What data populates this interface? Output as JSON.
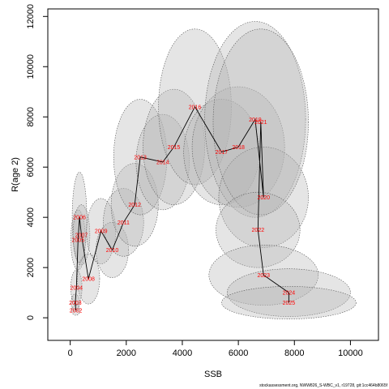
{
  "chart_data": {
    "type": "scatter",
    "xlabel": "SSB",
    "ylabel": "R(age 2)",
    "xlim": [
      -800,
      11000
    ],
    "ylim": [
      -900,
      12300
    ],
    "x_ticks": [
      0,
      2000,
      4000,
      6000,
      8000,
      10000
    ],
    "y_ticks": [
      0,
      2000,
      4000,
      6000,
      8000,
      10000,
      12000
    ],
    "grid": false,
    "colors": {
      "path": "#000000",
      "labels": "#ff0000",
      "ellipse_fill": "#b4b4b4",
      "ellipse_stroke": "#555555"
    },
    "points": [
      {
        "year": "2002",
        "x": 200,
        "y": 300
      },
      {
        "year": "2003",
        "x": 180,
        "y": 600
      },
      {
        "year": "2004",
        "x": 220,
        "y": 1200
      },
      {
        "year": "2005",
        "x": 280,
        "y": 3100
      },
      {
        "year": "2006",
        "x": 330,
        "y": 4000
      },
      {
        "year": "2007",
        "x": 400,
        "y": 3300
      },
      {
        "year": "2008",
        "x": 650,
        "y": 1550
      },
      {
        "year": "2009",
        "x": 1100,
        "y": 3450
      },
      {
        "year": "2010",
        "x": 1500,
        "y": 2700
      },
      {
        "year": "2011",
        "x": 1900,
        "y": 3800
      },
      {
        "year": "2012",
        "x": 2300,
        "y": 4500
      },
      {
        "year": "2013",
        "x": 2500,
        "y": 6400
      },
      {
        "year": "2014",
        "x": 3300,
        "y": 6200
      },
      {
        "year": "2015",
        "x": 3700,
        "y": 6800
      },
      {
        "year": "2016",
        "x": 4450,
        "y": 8400
      },
      {
        "year": "2017",
        "x": 5400,
        "y": 6600
      },
      {
        "year": "2018",
        "x": 6000,
        "y": 6800
      },
      {
        "year": "2019",
        "x": 6600,
        "y": 7900
      },
      {
        "year": "2020",
        "x": 6900,
        "y": 4800
      },
      {
        "year": "2021",
        "x": 6800,
        "y": 7800
      },
      {
        "year": "2022",
        "x": 6700,
        "y": 3500
      },
      {
        "year": "2023",
        "x": 6900,
        "y": 1700
      },
      {
        "year": "2024",
        "x": 7800,
        "y": 1000
      },
      {
        "year": "2025",
        "x": 7800,
        "y": 600
      }
    ],
    "ellipses": [
      {
        "cx": 200,
        "cy": 300,
        "rx": 150,
        "ry": 200
      },
      {
        "cx": 180,
        "cy": 600,
        "rx": 150,
        "ry": 350
      },
      {
        "cx": 220,
        "cy": 1200,
        "rx": 200,
        "ry": 700
      },
      {
        "cx": 280,
        "cy": 3100,
        "rx": 260,
        "ry": 1200
      },
      {
        "cx": 330,
        "cy": 4000,
        "rx": 260,
        "ry": 1800
      },
      {
        "cx": 400,
        "cy": 3300,
        "rx": 300,
        "ry": 1200
      },
      {
        "cx": 650,
        "cy": 1550,
        "rx": 400,
        "ry": 1000
      },
      {
        "cx": 1100,
        "cy": 3450,
        "rx": 520,
        "ry": 1300
      },
      {
        "cx": 1500,
        "cy": 2700,
        "rx": 580,
        "ry": 1100
      },
      {
        "cx": 1900,
        "cy": 3800,
        "rx": 720,
        "ry": 1350
      },
      {
        "cx": 2300,
        "cy": 4500,
        "rx": 840,
        "ry": 1650
      },
      {
        "cx": 2500,
        "cy": 6400,
        "rx": 950,
        "ry": 2300
      },
      {
        "cx": 3300,
        "cy": 6200,
        "rx": 950,
        "ry": 1900
      },
      {
        "cx": 3700,
        "cy": 6800,
        "rx": 1100,
        "ry": 2300
      },
      {
        "cx": 4450,
        "cy": 8400,
        "rx": 1300,
        "ry": 3100
      },
      {
        "cx": 5400,
        "cy": 6600,
        "rx": 1350,
        "ry": 2100
      },
      {
        "cx": 6000,
        "cy": 6800,
        "rx": 1650,
        "ry": 2400
      },
      {
        "cx": 6600,
        "cy": 7900,
        "rx": 1800,
        "ry": 3900
      },
      {
        "cx": 6900,
        "cy": 4800,
        "rx": 1600,
        "ry": 2000
      },
      {
        "cx": 6800,
        "cy": 7800,
        "rx": 1700,
        "ry": 3700
      },
      {
        "cx": 6700,
        "cy": 3500,
        "rx": 1500,
        "ry": 1500
      },
      {
        "cx": 6900,
        "cy": 1700,
        "rx": 1950,
        "ry": 1200
      },
      {
        "cx": 7800,
        "cy": 1000,
        "rx": 2200,
        "ry": 950
      },
      {
        "cx": 7800,
        "cy": 600,
        "rx": 2400,
        "ry": 650
      }
    ]
  },
  "footer": "stockassessment.org, NWW826_S-WBC_v1, r19728, git:1cc464b8065f"
}
